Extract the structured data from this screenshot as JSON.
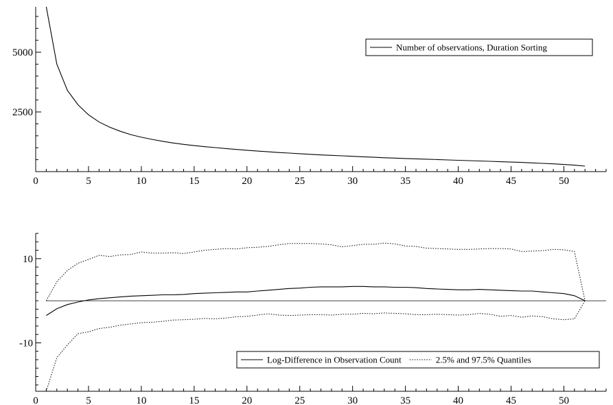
{
  "chart_data": [
    {
      "type": "line",
      "xlim": [
        0,
        54
      ],
      "ylim": [
        0,
        6900
      ],
      "xticks": [
        0,
        5,
        10,
        15,
        20,
        25,
        30,
        35,
        40,
        45,
        50
      ],
      "yticks": [
        2500,
        5000
      ],
      "legend_position": "top-right",
      "grid": false,
      "series": [
        {
          "name": "Number of observations, Duration Sorting",
          "style": "solid",
          "x": [
            1,
            2,
            3,
            4,
            5,
            6,
            7,
            8,
            9,
            10,
            11,
            12,
            13,
            14,
            15,
            16,
            17,
            18,
            19,
            20,
            21,
            22,
            23,
            24,
            25,
            26,
            27,
            28,
            29,
            30,
            31,
            32,
            33,
            34,
            35,
            36,
            37,
            38,
            39,
            40,
            41,
            42,
            43,
            44,
            45,
            46,
            47,
            48,
            49,
            50,
            51,
            52
          ],
          "values": [
            6900,
            4500,
            3400,
            2800,
            2380,
            2080,
            1860,
            1690,
            1550,
            1440,
            1350,
            1270,
            1200,
            1140,
            1090,
            1045,
            1005,
            965,
            930,
            895,
            860,
            830,
            800,
            775,
            750,
            725,
            700,
            680,
            660,
            640,
            620,
            600,
            580,
            565,
            550,
            535,
            520,
            505,
            490,
            475,
            460,
            445,
            430,
            415,
            400,
            385,
            365,
            345,
            325,
            300,
            270,
            230
          ]
        }
      ]
    },
    {
      "type": "line",
      "xlim": [
        0,
        54
      ],
      "ylim": [
        -21.5,
        16
      ],
      "xticks": [
        0,
        5,
        10,
        15,
        20,
        25,
        30,
        35,
        40,
        45,
        50
      ],
      "yticks": [
        -10,
        10
      ],
      "reference_line_y": 0,
      "legend_position": "bottom-right",
      "grid": false,
      "series": [
        {
          "name": "Log-Difference in Observation Count",
          "style": "solid",
          "x": [
            1,
            2,
            3,
            4,
            5,
            6,
            7,
            8,
            9,
            10,
            11,
            12,
            13,
            14,
            15,
            16,
            17,
            18,
            19,
            20,
            21,
            22,
            23,
            24,
            25,
            26,
            27,
            28,
            29,
            30,
            31,
            32,
            33,
            34,
            35,
            36,
            37,
            38,
            39,
            40,
            41,
            42,
            43,
            44,
            45,
            46,
            47,
            48,
            49,
            50,
            51,
            52
          ],
          "values": [
            -3.5,
            -1.9,
            -0.9,
            -0.3,
            0.2,
            0.5,
            0.7,
            0.9,
            1.1,
            1.2,
            1.3,
            1.4,
            1.4,
            1.5,
            1.7,
            1.8,
            1.9,
            2.0,
            2.1,
            2.1,
            2.3,
            2.5,
            2.7,
            2.9,
            3.0,
            3.2,
            3.3,
            3.3,
            3.3,
            3.4,
            3.4,
            3.3,
            3.3,
            3.2,
            3.2,
            3.1,
            2.9,
            2.8,
            2.7,
            2.6,
            2.6,
            2.7,
            2.6,
            2.5,
            2.4,
            2.3,
            2.3,
            2.1,
            1.9,
            1.7,
            1.2,
            0.0
          ]
        },
        {
          "name": "2.5% and 97.5% Quantiles",
          "style": "dotted",
          "x": [
            1,
            2,
            3,
            4,
            5,
            6,
            7,
            8,
            9,
            10,
            11,
            12,
            13,
            14,
            15,
            16,
            17,
            18,
            19,
            20,
            21,
            22,
            23,
            24,
            25,
            26,
            27,
            28,
            29,
            30,
            31,
            32,
            33,
            34,
            35,
            36,
            37,
            38,
            39,
            40,
            41,
            42,
            43,
            44,
            45,
            46,
            47,
            48,
            49,
            50,
            51,
            52
          ],
          "values": [
            0.0,
            4.5,
            7.2,
            8.9,
            9.8,
            10.8,
            10.5,
            10.9,
            11.0,
            11.6,
            11.3,
            11.3,
            11.4,
            11.2,
            11.6,
            12.0,
            12.2,
            12.4,
            12.3,
            12.6,
            12.7,
            12.9,
            13.3,
            13.6,
            13.6,
            13.6,
            13.5,
            13.3,
            12.8,
            13.1,
            13.4,
            13.4,
            13.7,
            13.5,
            13.0,
            12.9,
            12.5,
            12.4,
            12.3,
            12.2,
            12.2,
            12.3,
            12.4,
            12.4,
            12.3,
            11.7,
            11.8,
            11.9,
            12.2,
            12.1,
            11.7,
            0.0
          ]
        },
        {
          "name": "",
          "style": "dotted",
          "x": [
            1,
            2,
            3,
            4,
            5,
            6,
            7,
            8,
            9,
            10,
            11,
            12,
            13,
            14,
            15,
            16,
            17,
            18,
            19,
            20,
            21,
            22,
            23,
            24,
            25,
            26,
            27,
            28,
            29,
            30,
            31,
            32,
            33,
            34,
            35,
            36,
            37,
            38,
            39,
            40,
            41,
            42,
            43,
            44,
            45,
            46,
            47,
            48,
            49,
            50,
            51,
            52
          ],
          "values": [
            -21.5,
            -13.5,
            -10.5,
            -7.8,
            -7.4,
            -6.6,
            -6.3,
            -5.8,
            -5.5,
            -5.2,
            -5.1,
            -4.9,
            -4.6,
            -4.5,
            -4.4,
            -4.2,
            -4.3,
            -4.1,
            -3.8,
            -3.7,
            -3.4,
            -3.1,
            -3.4,
            -3.5,
            -3.4,
            -3.3,
            -3.3,
            -3.4,
            -3.2,
            -3.2,
            -3.0,
            -3.1,
            -2.9,
            -3.0,
            -3.1,
            -3.3,
            -3.3,
            -3.2,
            -3.3,
            -3.4,
            -3.3,
            -3.0,
            -3.2,
            -3.7,
            -3.5,
            -3.9,
            -3.6,
            -3.8,
            -4.3,
            -4.5,
            -4.3,
            0.0
          ]
        }
      ]
    }
  ]
}
